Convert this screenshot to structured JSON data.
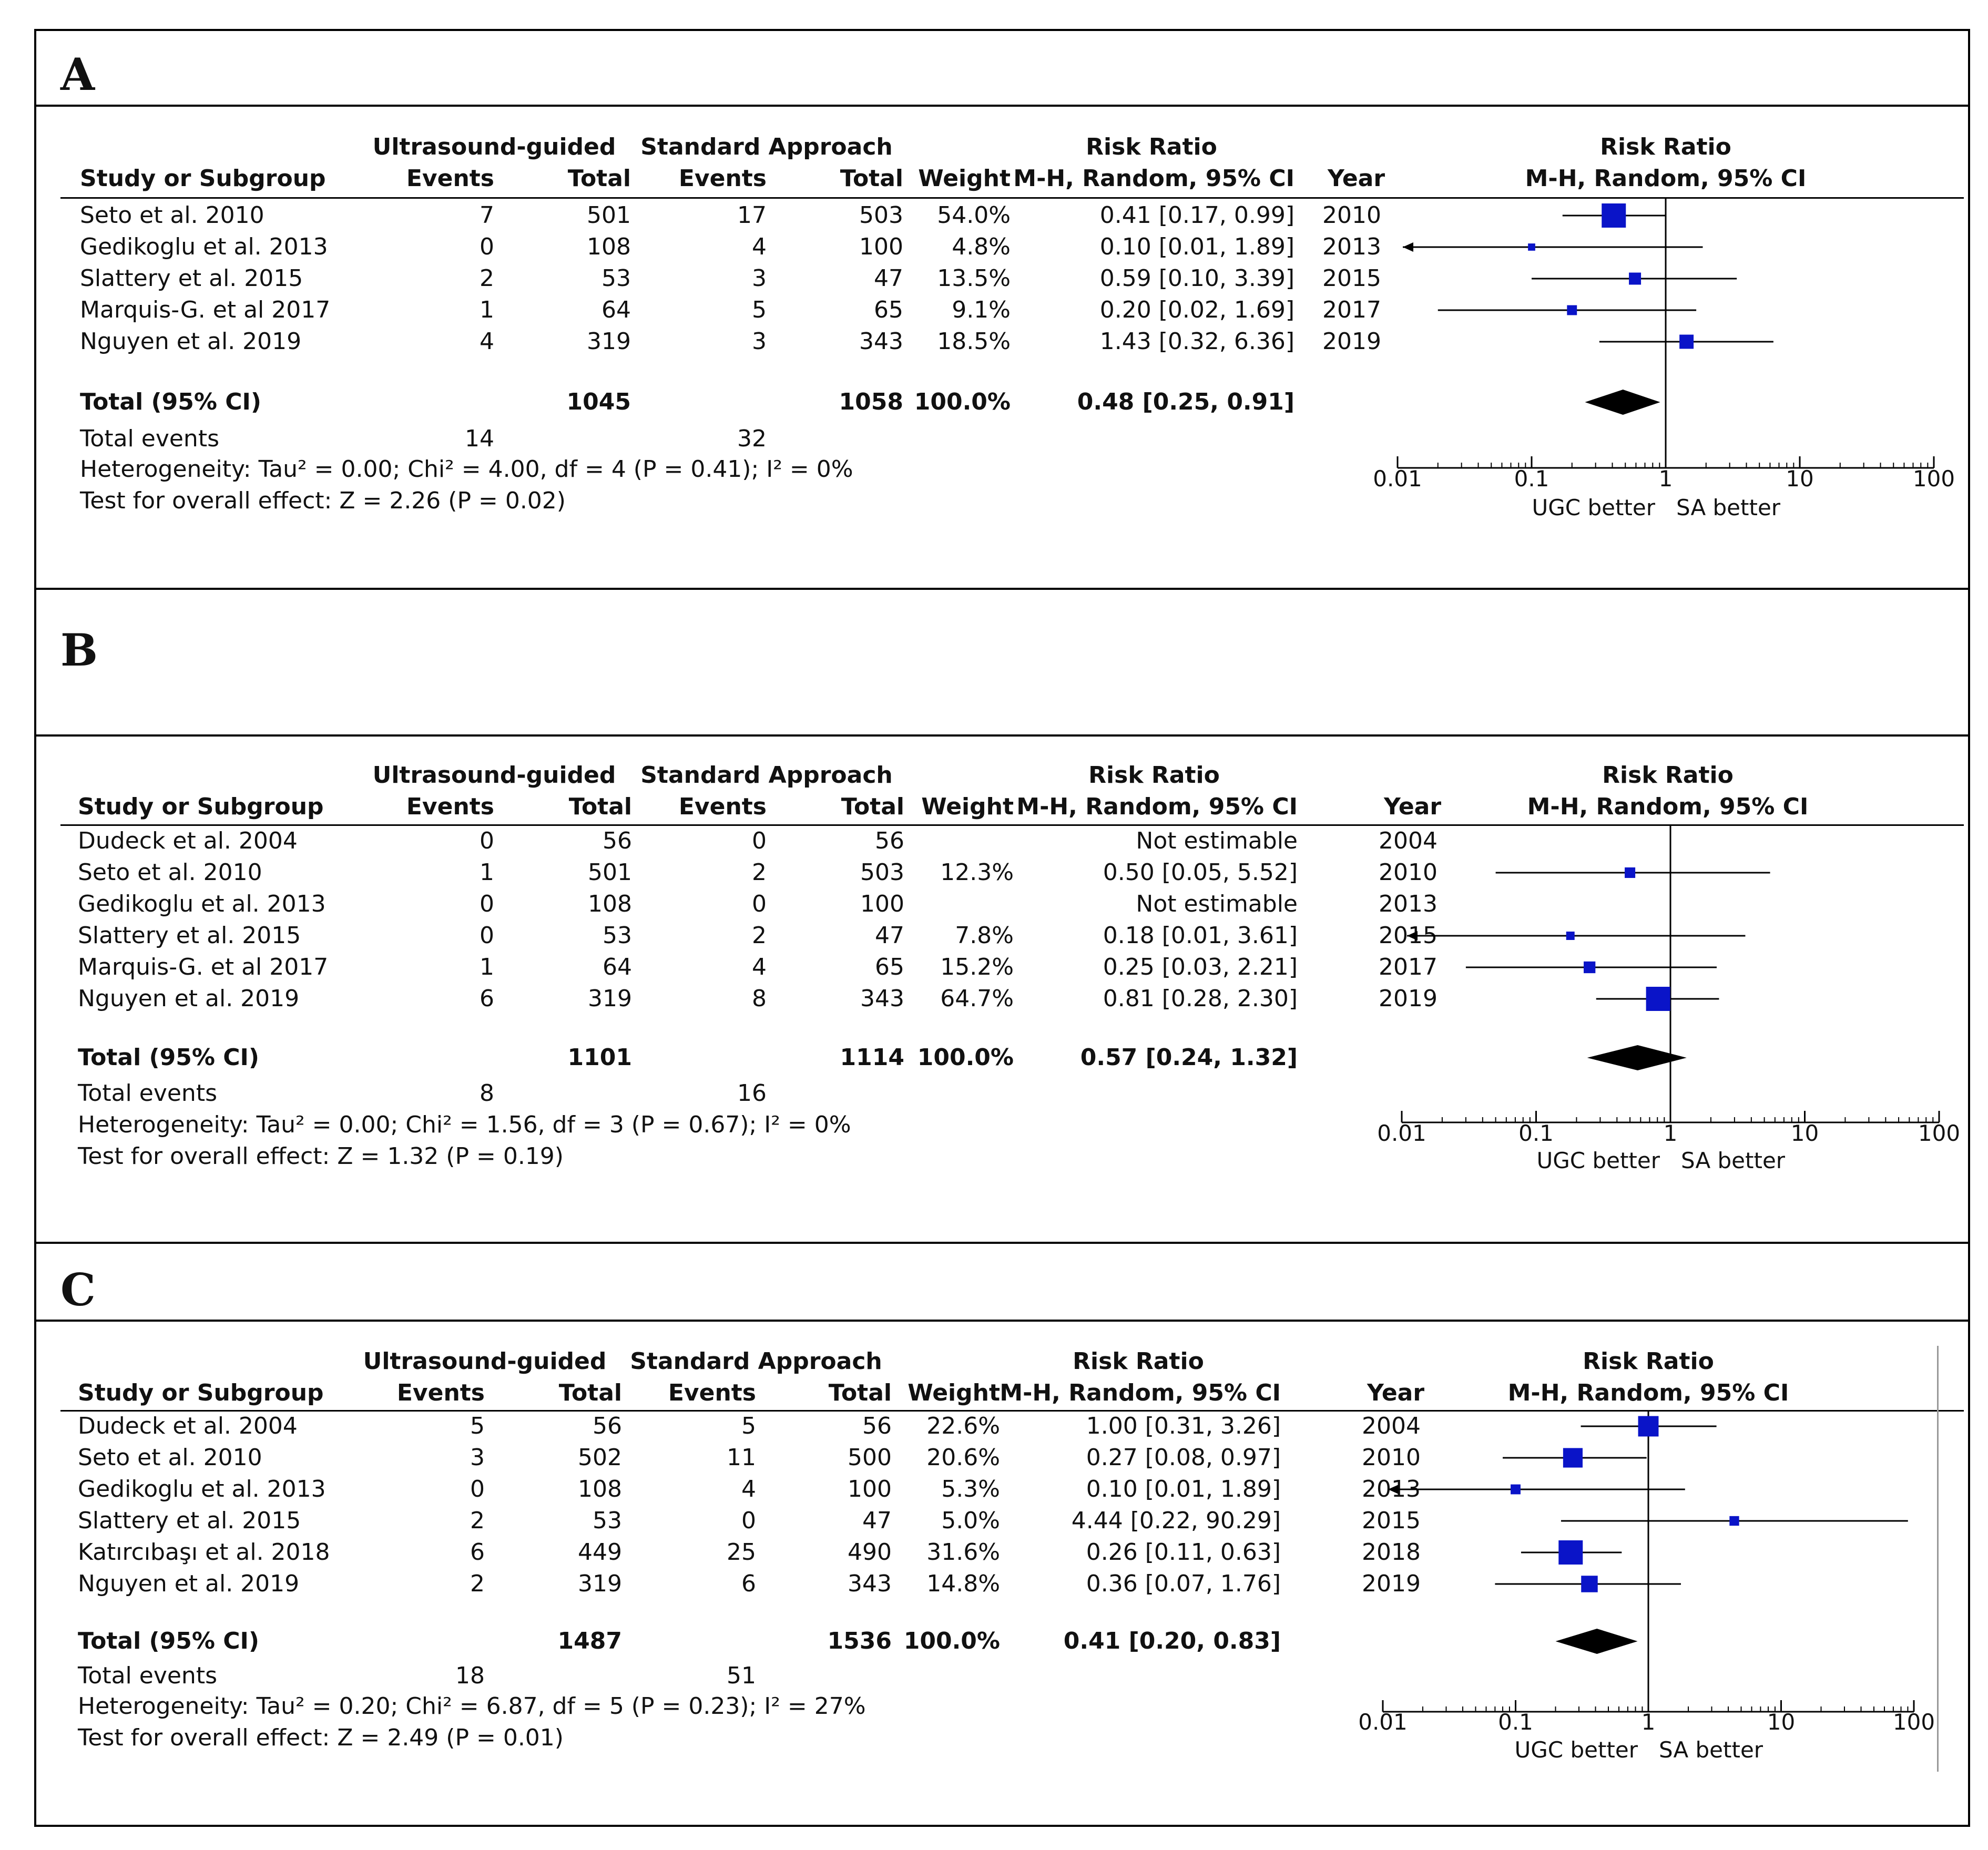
{
  "colors": {
    "marker": "#0a14c8",
    "line": "#000000",
    "text": "#111111"
  },
  "chart_data": [
    {
      "type": "forest",
      "panel": "A",
      "header": {
        "group1": "Ultrasound-guided",
        "group2": "Standard Approach",
        "study_col": "Study or Subgroup",
        "events": "Events",
        "total": "Total",
        "weight": "Weight",
        "rr_title": "Risk Ratio",
        "rr_method": "M-H, Random, 95% CI",
        "year": "Year",
        "plot_title": "Risk Ratio",
        "plot_method": "M-H, Random, 95% CI"
      },
      "studies": [
        {
          "name": "Seto et al. 2010",
          "e1": "7",
          "t1": "501",
          "e2": "17",
          "t2": "503",
          "weight": "54.0%",
          "ci_text": "0.41 [0.17, 0.99]",
          "year": "2010",
          "rr": 0.41,
          "lo": 0.17,
          "hi": 0.99,
          "w": 54.0
        },
        {
          "name": "Gedikoglu et al. 2013",
          "e1": "0",
          "t1": "108",
          "e2": "4",
          "t2": "100",
          "weight": "4.8%",
          "ci_text": "0.10 [0.01, 1.89]",
          "year": "2013",
          "rr": 0.1,
          "lo": 0.01,
          "hi": 1.89,
          "w": 4.8
        },
        {
          "name": "Slattery et al. 2015",
          "e1": "2",
          "t1": "53",
          "e2": "3",
          "t2": "47",
          "weight": "13.5%",
          "ci_text": "0.59 [0.10, 3.39]",
          "year": "2015",
          "rr": 0.59,
          "lo": 0.1,
          "hi": 3.39,
          "w": 13.5
        },
        {
          "name": "Marquis-G. et al 2017",
          "e1": "1",
          "t1": "64",
          "e2": "5",
          "t2": "65",
          "weight": "9.1%",
          "ci_text": "0.20 [0.02, 1.69]",
          "year": "2017",
          "rr": 0.2,
          "lo": 0.02,
          "hi": 1.69,
          "w": 9.1
        },
        {
          "name": "Nguyen et al. 2019",
          "e1": "4",
          "t1": "319",
          "e2": "3",
          "t2": "343",
          "weight": "18.5%",
          "ci_text": "1.43 [0.32, 6.36]",
          "year": "2019",
          "rr": 1.43,
          "lo": 0.32,
          "hi": 6.36,
          "w": 18.5
        }
      ],
      "total": {
        "label": "Total (95% CI)",
        "t1": "1045",
        "t2": "1058",
        "weight": "100.0%",
        "ci_text": "0.48 [0.25, 0.91]",
        "rr": 0.48,
        "lo": 0.25,
        "hi": 0.91
      },
      "total_events": {
        "label": "Total events",
        "e1": "14",
        "e2": "32"
      },
      "heterogeneity": "Heterogeneity: Tau² = 0.00; Chi² = 4.00, df = 4 (P = 0.41); I² = 0%",
      "overall": "Test for overall effect: Z = 2.26 (P = 0.02)",
      "axis": {
        "scale": "log",
        "ticks": [
          "0.01",
          "0.1",
          "1",
          "10",
          "100"
        ],
        "range": [
          0.01,
          100
        ],
        "left_label": "UGC better",
        "right_label": "SA better"
      }
    },
    {
      "type": "forest",
      "panel": "B",
      "header": {
        "group1": "Ultrasound-guided",
        "group2": "Standard Approach",
        "study_col": "Study or Subgroup",
        "events": "Events",
        "total": "Total",
        "weight": "Weight",
        "rr_title": "Risk Ratio",
        "rr_method": "M-H, Random, 95% CI",
        "year": "Year",
        "plot_title": "Risk Ratio",
        "plot_method": "M-H, Random, 95% CI"
      },
      "studies": [
        {
          "name": "Dudeck et al. 2004",
          "e1": "0",
          "t1": "56",
          "e2": "0",
          "t2": "56",
          "weight": "",
          "ci_text": "Not estimable",
          "year": "2004",
          "rr": null,
          "lo": null,
          "hi": null,
          "w": 0
        },
        {
          "name": "Seto et al. 2010",
          "e1": "1",
          "t1": "501",
          "e2": "2",
          "t2": "503",
          "weight": "12.3%",
          "ci_text": "0.50 [0.05, 5.52]",
          "year": "2010",
          "rr": 0.5,
          "lo": 0.05,
          "hi": 5.52,
          "w": 12.3
        },
        {
          "name": "Gedikoglu et al. 2013",
          "e1": "0",
          "t1": "108",
          "e2": "0",
          "t2": "100",
          "weight": "",
          "ci_text": "Not estimable",
          "year": "2013",
          "rr": null,
          "lo": null,
          "hi": null,
          "w": 0
        },
        {
          "name": "Slattery et al. 2015",
          "e1": "0",
          "t1": "53",
          "e2": "2",
          "t2": "47",
          "weight": "7.8%",
          "ci_text": "0.18 [0.01, 3.61]",
          "year": "2015",
          "rr": 0.18,
          "lo": 0.01,
          "hi": 3.61,
          "w": 7.8
        },
        {
          "name": "Marquis-G. et al 2017",
          "e1": "1",
          "t1": "64",
          "e2": "4",
          "t2": "65",
          "weight": "15.2%",
          "ci_text": "0.25 [0.03, 2.21]",
          "year": "2017",
          "rr": 0.25,
          "lo": 0.03,
          "hi": 2.21,
          "w": 15.2
        },
        {
          "name": "Nguyen et al. 2019",
          "e1": "6",
          "t1": "319",
          "e2": "8",
          "t2": "343",
          "weight": "64.7%",
          "ci_text": "0.81 [0.28, 2.30]",
          "year": "2019",
          "rr": 0.81,
          "lo": 0.28,
          "hi": 2.3,
          "w": 64.7
        }
      ],
      "total": {
        "label": "Total (95% CI)",
        "t1": "1101",
        "t2": "1114",
        "weight": "100.0%",
        "ci_text": "0.57 [0.24, 1.32]",
        "rr": 0.57,
        "lo": 0.24,
        "hi": 1.32
      },
      "total_events": {
        "label": "Total events",
        "e1": "8",
        "e2": "16"
      },
      "heterogeneity": "Heterogeneity: Tau² = 0.00; Chi² = 1.56, df = 3 (P = 0.67); I² = 0%",
      "overall": "Test for overall effect: Z = 1.32 (P = 0.19)",
      "axis": {
        "scale": "log",
        "ticks": [
          "0.01",
          "0.1",
          "1",
          "10",
          "100"
        ],
        "range": [
          0.01,
          100
        ],
        "left_label": "UGC better",
        "right_label": "SA better"
      }
    },
    {
      "type": "forest",
      "panel": "C",
      "header": {
        "group1": "Ultrasound-guided",
        "group2": "Standard Approach",
        "study_col": "Study or Subgroup",
        "events": "Events",
        "total": "Total",
        "weight": "Weight",
        "rr_title": "Risk Ratio",
        "rr_method": "M-H, Random, 95% CI",
        "year": "Year",
        "plot_title": "Risk Ratio",
        "plot_method": "M-H, Random, 95% CI"
      },
      "studies": [
        {
          "name": "Dudeck et al. 2004",
          "e1": "5",
          "t1": "56",
          "e2": "5",
          "t2": "56",
          "weight": "22.6%",
          "ci_text": "1.00 [0.31, 3.26]",
          "year": "2004",
          "rr": 1.0,
          "lo": 0.31,
          "hi": 3.26,
          "w": 22.6
        },
        {
          "name": "Seto et al. 2010",
          "e1": "3",
          "t1": "502",
          "e2": "11",
          "t2": "500",
          "weight": "20.6%",
          "ci_text": "0.27 [0.08, 0.97]",
          "year": "2010",
          "rr": 0.27,
          "lo": 0.08,
          "hi": 0.97,
          "w": 20.6
        },
        {
          "name": "Gedikoglu et al. 2013",
          "e1": "0",
          "t1": "108",
          "e2": "4",
          "t2": "100",
          "weight": "5.3%",
          "ci_text": "0.10 [0.01, 1.89]",
          "year": "2013",
          "rr": 0.1,
          "lo": 0.01,
          "hi": 1.89,
          "w": 5.3
        },
        {
          "name": "Slattery et al. 2015",
          "e1": "2",
          "t1": "53",
          "e2": "0",
          "t2": "47",
          "weight": "5.0%",
          "ci_text": "4.44 [0.22, 90.29]",
          "year": "2015",
          "rr": 4.44,
          "lo": 0.22,
          "hi": 90.29,
          "w": 5.0
        },
        {
          "name": "Katırcıbaşı et al. 2018",
          "e1": "6",
          "t1": "449",
          "e2": "25",
          "t2": "490",
          "weight": "31.6%",
          "ci_text": "0.26 [0.11, 0.63]",
          "year": "2018",
          "rr": 0.26,
          "lo": 0.11,
          "hi": 0.63,
          "w": 31.6
        },
        {
          "name": "Nguyen et al. 2019",
          "e1": "2",
          "t1": "319",
          "e2": "6",
          "t2": "343",
          "weight": "14.8%",
          "ci_text": "0.36 [0.07, 1.76]",
          "year": "2019",
          "rr": 0.36,
          "lo": 0.07,
          "hi": 1.76,
          "w": 14.8
        }
      ],
      "total": {
        "label": "Total (95% CI)",
        "t1": "1487",
        "t2": "1536",
        "weight": "100.0%",
        "ci_text": "0.41 [0.20, 0.83]",
        "rr": 0.41,
        "lo": 0.2,
        "hi": 0.83
      },
      "total_events": {
        "label": "Total events",
        "e1": "18",
        "e2": "51"
      },
      "heterogeneity": "Heterogeneity: Tau² = 0.20; Chi² = 6.87, df = 5 (P = 0.23); I² = 27%",
      "overall": "Test for overall effect: Z = 2.49 (P = 0.01)",
      "axis": {
        "scale": "log",
        "ticks": [
          "0.01",
          "0.1",
          "1",
          "10",
          "100"
        ],
        "range": [
          0.01,
          100
        ],
        "left_label": "UGC better",
        "right_label": "SA better"
      }
    }
  ]
}
